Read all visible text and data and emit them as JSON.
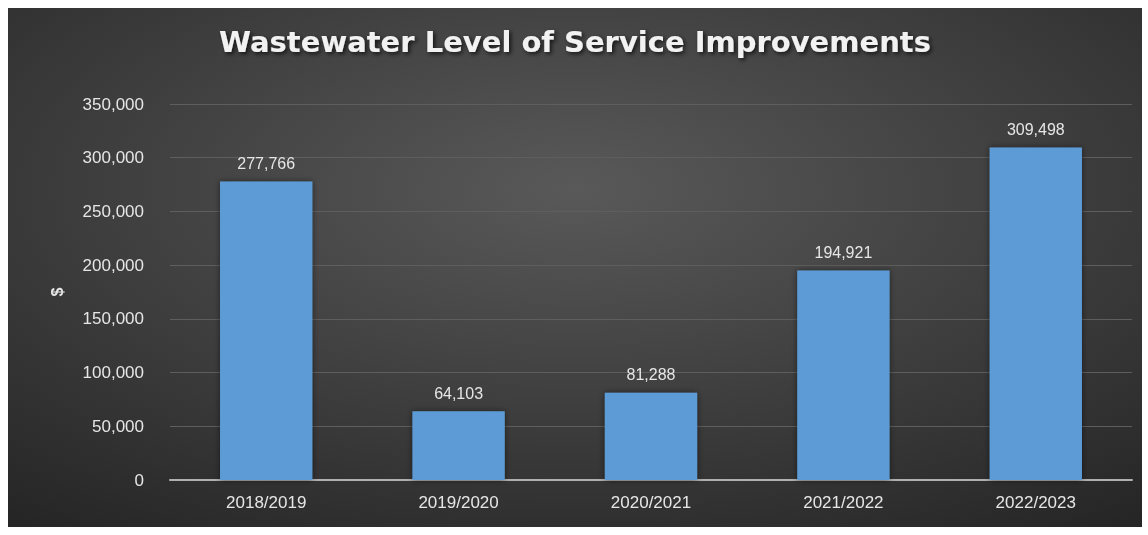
{
  "chart_data": {
    "type": "bar",
    "title": "Wastewater Level of Service Improvements",
    "ylabel": "$",
    "categories": [
      "2018/2019",
      "2019/2020",
      "2020/2021",
      "2021/2022",
      "2022/2023"
    ],
    "values": [
      277766,
      64103,
      81288,
      194921,
      309498
    ],
    "value_labels": [
      "277,766",
      "64,103",
      "81,288",
      "194,921",
      "309,498"
    ],
    "color": "#5b9bd5",
    "ylim": [
      0,
      350000
    ],
    "yticks": [
      0,
      {
        "value": 50000,
        "label": "50,000"
      },
      {
        "value": 100000,
        "label": "100,000"
      },
      {
        "value": 150000,
        "label": "150,000"
      },
      {
        "value": 200000,
        "label": "200,000"
      },
      {
        "value": 250000,
        "label": "250,000"
      },
      {
        "value": 300000,
        "label": "300,000"
      },
      {
        "value": 350000,
        "label": "350,000"
      }
    ],
    "grid": "y"
  }
}
